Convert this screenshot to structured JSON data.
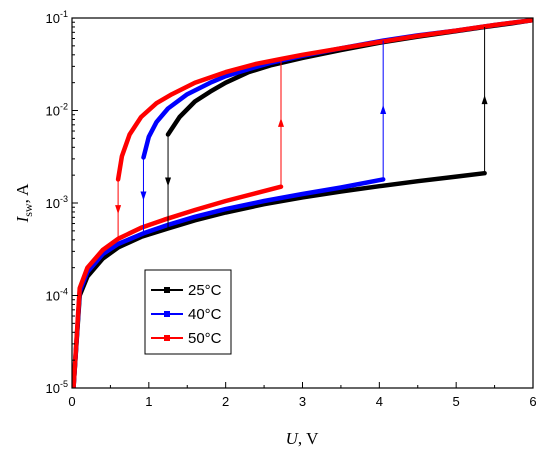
{
  "chart_data": {
    "type": "line",
    "xlabel_symbol": "U",
    "xlabel_unit": ", V",
    "ylabel_symbol": "I",
    "ylabel_subscript": "sw",
    "ylabel_unit": ", A",
    "xlim": [
      0,
      6
    ],
    "ylim": [
      1e-05,
      0.1
    ],
    "yscale": "log",
    "x_ticks": [
      "0",
      "1",
      "2",
      "3",
      "4",
      "5",
      "6"
    ],
    "y_ticks": [
      {
        "base": "10",
        "exp": "-5"
      },
      {
        "base": "10",
        "exp": "-4"
      },
      {
        "base": "10",
        "exp": "-3"
      },
      {
        "base": "10",
        "exp": "-2"
      },
      {
        "base": "10",
        "exp": "-1"
      }
    ],
    "legend_position": "lower-center",
    "series": [
      {
        "name": "25°C",
        "color": "#000000",
        "low_branch": {
          "x": [
            0.02,
            0.1,
            0.2,
            0.4,
            0.6,
            0.9,
            1.25,
            1.6,
            2.0,
            2.5,
            3.0,
            3.5,
            4.0,
            4.5,
            5.0,
            5.37
          ],
          "y": [
            1e-05,
            0.0001,
            0.00016,
            0.00025,
            0.00033,
            0.00043,
            0.00053,
            0.00065,
            0.00079,
            0.00097,
            0.00115,
            0.00133,
            0.00152,
            0.00172,
            0.00193,
            0.0021
          ]
        },
        "high_branch": {
          "x": [
            1.25,
            1.4,
            1.6,
            1.8,
            2.0,
            2.3,
            2.6,
            3.0,
            3.5,
            4.0,
            4.5,
            5.0,
            5.37,
            5.7,
            6.0
          ],
          "y": [
            0.0055,
            0.0085,
            0.0125,
            0.016,
            0.02,
            0.026,
            0.031,
            0.037,
            0.045,
            0.054,
            0.063,
            0.072,
            0.08,
            0.087,
            0.095
          ]
        },
        "switch_down_x": 1.25,
        "switch_up_x": 5.37
      },
      {
        "name": "40°C",
        "color": "#0000ff",
        "low_branch": {
          "x": [
            0.02,
            0.1,
            0.2,
            0.4,
            0.6,
            0.93,
            1.25,
            1.6,
            2.0,
            2.5,
            3.0,
            3.5,
            4.05
          ],
          "y": [
            1e-05,
            0.00011,
            0.00018,
            0.00028,
            0.00036,
            0.00047,
            0.00058,
            0.00071,
            0.00086,
            0.00105,
            0.00125,
            0.00147,
            0.0018
          ]
        },
        "high_branch": {
          "x": [
            0.93,
            1.0,
            1.1,
            1.25,
            1.5,
            1.8,
            2.0,
            2.3,
            2.6,
            3.0,
            3.5,
            4.05,
            4.5,
            5.0,
            5.5,
            6.0
          ],
          "y": [
            0.0031,
            0.0052,
            0.0075,
            0.0105,
            0.015,
            0.02,
            0.0235,
            0.028,
            0.033,
            0.039,
            0.047,
            0.057,
            0.065,
            0.073,
            0.084,
            0.095
          ]
        },
        "switch_down_x": 0.93,
        "switch_up_x": 4.05
      },
      {
        "name": "50°C",
        "color": "#ff0000",
        "low_branch": {
          "x": [
            0.02,
            0.1,
            0.2,
            0.4,
            0.6,
            0.9,
            1.2,
            1.6,
            2.0,
            2.4,
            2.72
          ],
          "y": [
            1e-05,
            0.00012,
            0.0002,
            0.00031,
            0.00041,
            0.00054,
            0.00066,
            0.00084,
            0.00105,
            0.00128,
            0.0015
          ]
        },
        "high_branch": {
          "x": [
            0.6,
            0.65,
            0.75,
            0.9,
            1.1,
            1.3,
            1.6,
            2.0,
            2.4,
            2.72,
            3.0,
            3.5,
            4.0,
            4.5,
            5.0,
            5.5,
            6.0
          ],
          "y": [
            0.0018,
            0.0032,
            0.0055,
            0.0085,
            0.012,
            0.015,
            0.02,
            0.026,
            0.032,
            0.036,
            0.04,
            0.047,
            0.055,
            0.064,
            0.073,
            0.084,
            0.095
          ]
        },
        "switch_down_x": 0.6,
        "switch_up_x": 2.72
      }
    ]
  }
}
